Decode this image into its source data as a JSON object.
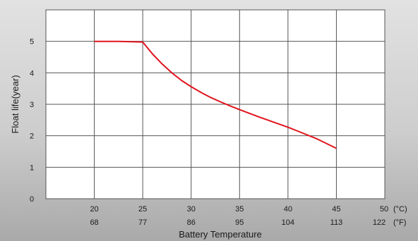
{
  "chart_data": {
    "type": "line",
    "xlabel": "Battery Temperature",
    "ylabel": "Float life(year)",
    "x_celsius_ticks": [
      "20",
      "25",
      "30",
      "35",
      "40",
      "45",
      "50"
    ],
    "x_fahrenheit_ticks": [
      "68",
      "77",
      "86",
      "95",
      "104",
      "113",
      "122"
    ],
    "x_celsius_unit": "(°C)",
    "x_fahrenheit_unit": "(°F)",
    "y_ticks": [
      "0",
      "1",
      "2",
      "3",
      "4",
      "5"
    ],
    "xlim": [
      15,
      50
    ],
    "ylim": [
      0,
      6
    ],
    "grid": true,
    "series": [
      {
        "color": "#e0141e",
        "x": [
          20,
          22.5,
          25,
          26,
          27,
          28,
          29,
          30,
          31,
          32,
          33,
          34,
          35,
          37,
          39,
          40,
          41,
          43,
          45
        ],
        "y": [
          5.0,
          5.0,
          4.98,
          4.6,
          4.28,
          4.0,
          3.76,
          3.56,
          3.38,
          3.22,
          3.08,
          2.95,
          2.83,
          2.6,
          2.38,
          2.27,
          2.15,
          1.9,
          1.6
        ]
      }
    ]
  }
}
